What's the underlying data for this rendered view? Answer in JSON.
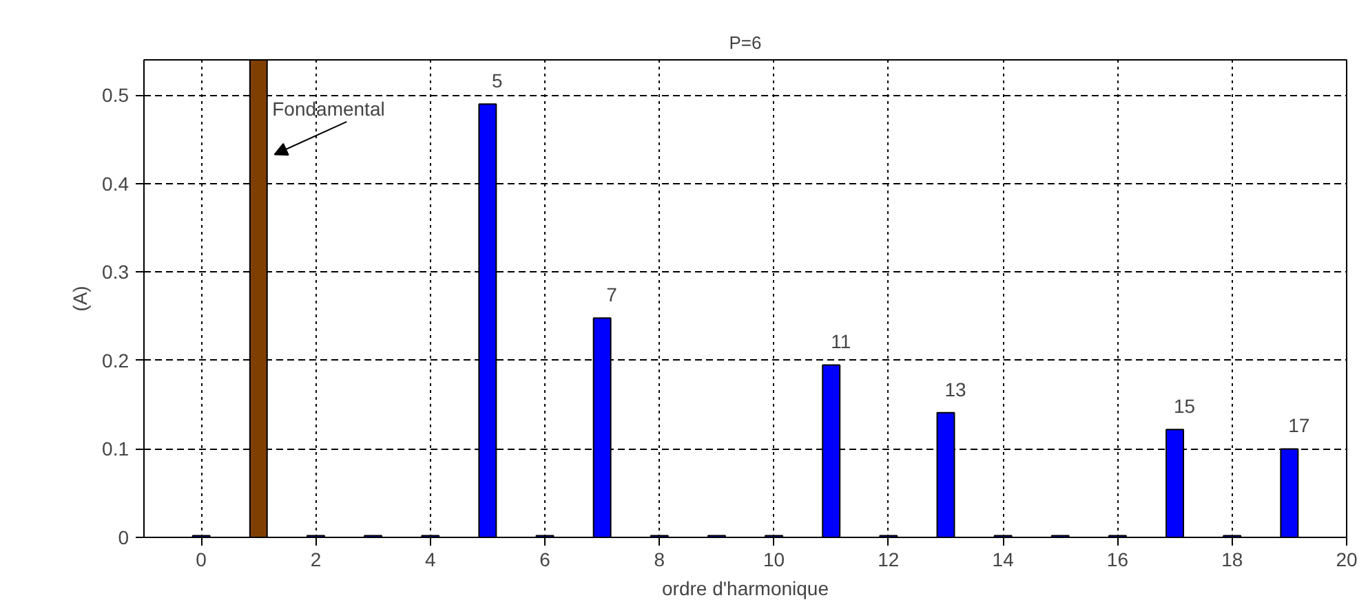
{
  "chart_data": {
    "type": "bar",
    "title": "P=6",
    "xlabel": "ordre d'harmonique",
    "ylabel": "(A)",
    "x": [
      0,
      1,
      2,
      3,
      4,
      5,
      6,
      7,
      8,
      9,
      10,
      11,
      12,
      13,
      14,
      15,
      16,
      17,
      18,
      19
    ],
    "values": [
      0.002,
      0.54,
      0.002,
      0.002,
      0.002,
      0.49,
      0.002,
      0.248,
      0.002,
      0.002,
      0.002,
      0.195,
      0.002,
      0.141,
      0.002,
      0.002,
      0.002,
      0.122,
      0.002,
      0.1
    ],
    "colors": [
      "#0000ff",
      "#7f3f00",
      "#0000ff",
      "#0000ff",
      "#0000ff",
      "#0000ff",
      "#0000ff",
      "#0000ff",
      "#0000ff",
      "#0000ff",
      "#0000ff",
      "#0000ff",
      "#0000ff",
      "#0000ff",
      "#0000ff",
      "#0000ff",
      "#0000ff",
      "#0000ff",
      "#0000ff",
      "#0000ff"
    ],
    "xlim": [
      -1,
      20
    ],
    "xticks": [
      0,
      2,
      4,
      6,
      8,
      10,
      12,
      14,
      16,
      18,
      20
    ],
    "ylim": [
      0,
      0.54
    ],
    "yticks": [
      0,
      0.1,
      0.2,
      0.3,
      0.4,
      0.5
    ],
    "grid": true,
    "annotations": [
      {
        "text": "Fondamental",
        "x": 1,
        "y": 0.54
      },
      {
        "text": "5",
        "x": 5,
        "y": 0.49
      },
      {
        "text": "7",
        "x": 7,
        "y": 0.248
      },
      {
        "text": "11",
        "x": 11,
        "y": 0.195
      },
      {
        "text": "13",
        "x": 13,
        "y": 0.141
      },
      {
        "text": "15",
        "x": 17,
        "y": 0.122
      },
      {
        "text": "17",
        "x": 19,
        "y": 0.1
      }
    ]
  }
}
